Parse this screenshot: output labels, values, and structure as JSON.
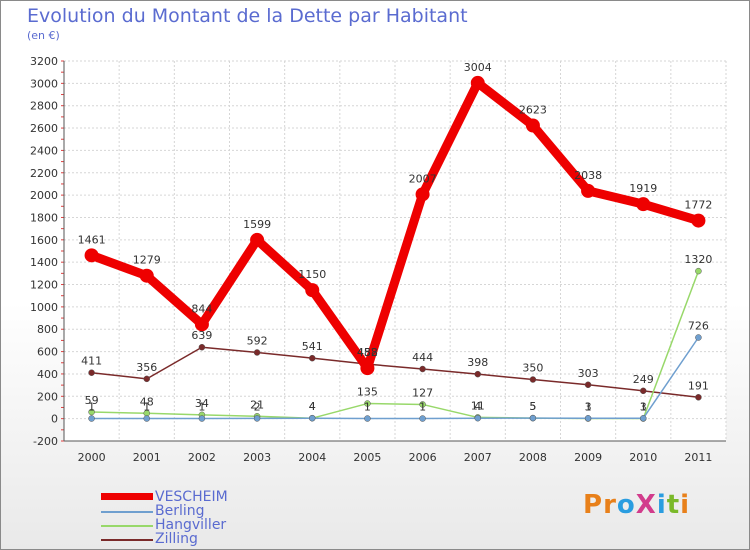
{
  "title": "Evolution du Montant de la Dette par Habitant",
  "unit": "(en €)",
  "logo": {
    "text": "ProXiti",
    "colors": [
      "#e8801a",
      "#e8801a",
      "#2a9de0",
      "#d23c8c",
      "#2a9de0",
      "#7ab929",
      "#e8801a"
    ]
  },
  "chart_data": {
    "type": "line",
    "title": "Evolution du Montant de la Dette par Habitant",
    "subtitle": "(en €)",
    "x": [
      "2000",
      "2001",
      "2002",
      "2003",
      "2004",
      "2005",
      "2006",
      "2007",
      "2008",
      "2009",
      "2010",
      "2011"
    ],
    "ylim": [
      -200,
      3200
    ],
    "yticks": [
      -200,
      0,
      200,
      400,
      600,
      800,
      1000,
      1200,
      1400,
      1600,
      1800,
      2000,
      2200,
      2400,
      2600,
      2800,
      3000,
      3200
    ],
    "grid": true,
    "legend_position": "bottom-left",
    "series": [
      {
        "name": "VESCHEIM",
        "color": "#ee0000",
        "thick": true,
        "values": [
          1461,
          1279,
          844,
          1599,
          1150,
          452,
          2007,
          3004,
          2623,
          2038,
          1919,
          1772
        ],
        "labels": [
          "1461",
          "1279",
          "844",
          "1599",
          "1150",
          "452",
          "2007",
          "3004",
          "2623",
          "2038",
          "1919",
          "1772"
        ]
      },
      {
        "name": "Berling",
        "color": "#6f9fcf",
        "thick": false,
        "values": [
          1,
          1,
          1,
          2,
          4,
          1,
          1,
          4,
          5,
          3,
          3,
          726
        ],
        "labels": [
          "1",
          "1",
          "1",
          "2",
          "4",
          "1",
          "1",
          "4",
          "5",
          "3",
          "3",
          "726"
        ]
      },
      {
        "name": "Hangviller",
        "color": "#98d86a",
        "thick": false,
        "values": [
          59,
          48,
          34,
          21,
          4,
          135,
          127,
          11,
          5,
          1,
          1,
          1320
        ],
        "labels": [
          "59",
          "48",
          "34",
          "21",
          "4",
          "135",
          "127",
          "11",
          "5",
          "1",
          "1",
          "1320"
        ]
      },
      {
        "name": "Zilling",
        "color": "#7a2a2a",
        "thick": false,
        "values": [
          411,
          356,
          639,
          592,
          541,
          488,
          444,
          398,
          350,
          303,
          249,
          191
        ],
        "labels": [
          "411",
          "356",
          "639",
          "592",
          "541",
          "488",
          "444",
          "398",
          "350",
          "303",
          "249",
          "191"
        ]
      }
    ]
  }
}
